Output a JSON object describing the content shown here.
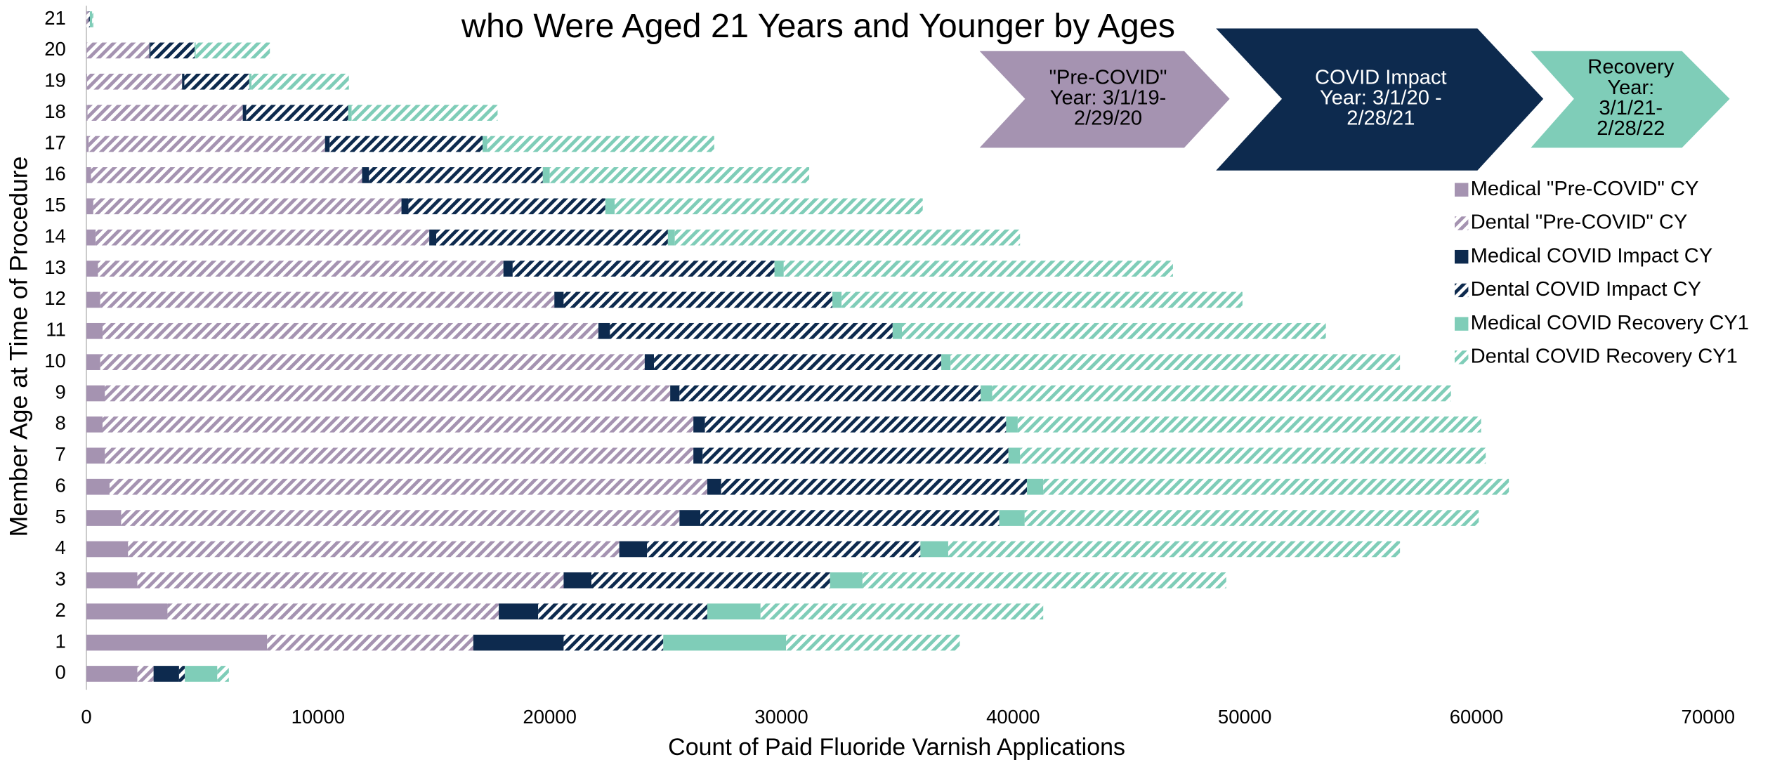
{
  "chart_data": {
    "type": "stacked-hbar",
    "title": "who Were Aged 21 Years and Younger by Ages",
    "x_label": "Count of Paid Fluoride Varnish Applications",
    "y_label": "Member Age at Time of Procedure",
    "categories": [
      "0",
      "1",
      "2",
      "3",
      "4",
      "5",
      "6",
      "7",
      "8",
      "9",
      "10",
      "11",
      "12",
      "13",
      "14",
      "15",
      "16",
      "17",
      "18",
      "19",
      "20",
      "21"
    ],
    "xlim": [
      0,
      70000
    ],
    "xticks": [
      0,
      10000,
      20000,
      30000,
      40000,
      50000,
      60000,
      70000
    ],
    "legend": "right",
    "series": [
      {
        "name": "Medical \"Pre-COVID\" CY",
        "color": "#a593b1",
        "pattern": "solid",
        "values": [
          2200,
          7800,
          3500,
          2200,
          1800,
          1500,
          1000,
          800,
          700,
          800,
          600,
          700,
          600,
          500,
          400,
          300,
          200,
          100,
          50,
          30,
          20,
          0
        ]
      },
      {
        "name": "Dental \"Pre-COVID\" CY",
        "color": "#a593b1",
        "pattern": "hatch",
        "values": [
          700,
          8900,
          14300,
          18400,
          21200,
          24100,
          25800,
          25400,
          25500,
          24400,
          23500,
          21400,
          19600,
          17500,
          14400,
          13300,
          11700,
          10200,
          6700,
          4100,
          2700,
          100
        ]
      },
      {
        "name": "Medical COVID Impact CY",
        "color": "#0d2a4e",
        "pattern": "solid",
        "values": [
          1100,
          3900,
          1700,
          1200,
          1200,
          900,
          600,
          400,
          500,
          400,
          400,
          500,
          400,
          400,
          300,
          300,
          300,
          200,
          150,
          100,
          50,
          0
        ]
      },
      {
        "name": "Dental COVID Impact CY",
        "color": "#0d2a4e",
        "pattern": "hatch",
        "values": [
          250,
          4300,
          7300,
          10300,
          11800,
          12900,
          13200,
          13200,
          13000,
          13000,
          12400,
          12200,
          11600,
          11300,
          10000,
          8500,
          7500,
          6600,
          4400,
          2800,
          1900,
          50
        ]
      },
      {
        "name": "Medical COVID Recovery CY1",
        "color": "#7fcdb8",
        "pattern": "solid",
        "values": [
          1400,
          5300,
          2300,
          1400,
          1200,
          1100,
          700,
          500,
          500,
          500,
          400,
          400,
          400,
          400,
          300,
          400,
          300,
          200,
          150,
          100,
          50,
          100
        ]
      },
      {
        "name": "Dental COVID Recovery CY1",
        "color": "#7fcdb8",
        "pattern": "hatch",
        "values": [
          500,
          7500,
          12200,
          15700,
          19500,
          19600,
          20100,
          20100,
          20000,
          19800,
          19400,
          18300,
          17300,
          16800,
          14900,
          13300,
          11200,
          9800,
          6300,
          4200,
          3200,
          50
        ]
      }
    ],
    "annotations": [
      {
        "color": "#a593b1",
        "text_color": "#000000",
        "lines": [
          "\"Pre-COVID\"",
          "Year: 3/1/19-",
          "2/29/20"
        ]
      },
      {
        "color": "#0d2a4e",
        "text_color": "#ffffff",
        "lines": [
          "COVID Impact",
          "Year: 3/1/20 -",
          "2/28/21"
        ]
      },
      {
        "color": "#7fcdb8",
        "text_color": "#000000",
        "lines": [
          "Recovery",
          "Year:",
          "3/1/21-",
          "2/28/22"
        ]
      }
    ]
  }
}
